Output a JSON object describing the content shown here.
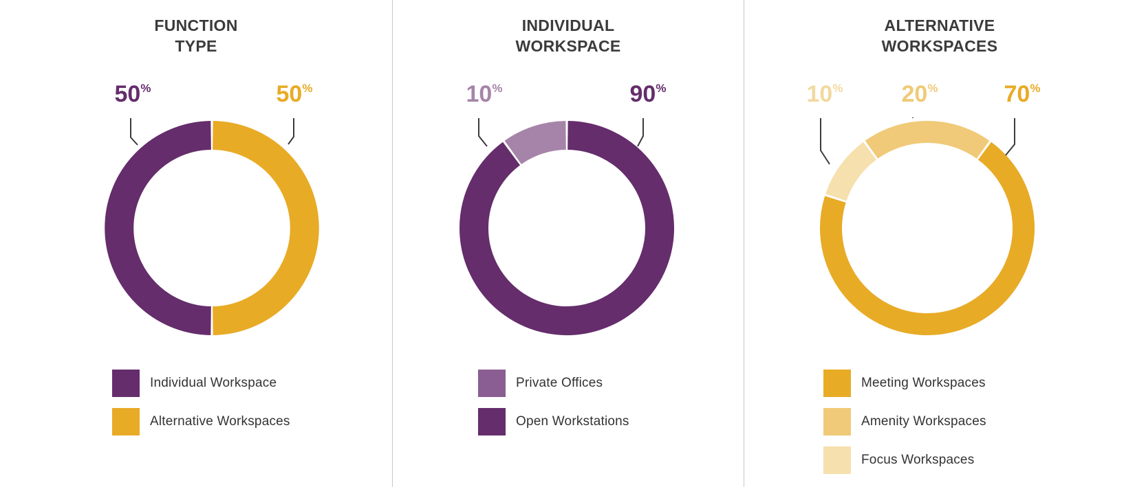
{
  "charts": [
    {
      "title_lines": [
        "FUNCTION",
        "TYPE"
      ],
      "legend": [
        {
          "label": "Individual Workspace",
          "color": "#652d6c"
        },
        {
          "label": "Alternative Workspaces",
          "color": "#e8ab26"
        }
      ]
    },
    {
      "title_lines": [
        "INDIVIDUAL",
        "WORKSPACE"
      ],
      "legend": [
        {
          "label": "Private Offices",
          "color": "#8a5e92"
        },
        {
          "label": "Open Workstations",
          "color": "#652d6c"
        }
      ]
    },
    {
      "title_lines": [
        "ALTERNATIVE",
        "WORKSPACES"
      ],
      "legend": [
        {
          "label": "Meeting Workspaces",
          "color": "#e8ab26"
        },
        {
          "label": "Amenity Workspaces",
          "color": "#f0ca78"
        },
        {
          "label": "Focus Workspaces",
          "color": "#f6e0ad"
        }
      ]
    }
  ],
  "chart_data": [
    {
      "type": "pie",
      "title": "FUNCTION TYPE",
      "slices": [
        {
          "label": "Individual Workspace",
          "value": 50,
          "display": "50",
          "unit": "%",
          "color": "#652d6c"
        },
        {
          "label": "Alternative Workspaces",
          "value": 50,
          "display": "50",
          "unit": "%",
          "color": "#e8ab26"
        }
      ]
    },
    {
      "type": "pie",
      "title": "INDIVIDUAL WORKSPACE",
      "slices": [
        {
          "label": "Private Offices",
          "value": 10,
          "display": "10",
          "unit": "%",
          "color": "#a684a9"
        },
        {
          "label": "Open Workstations",
          "value": 90,
          "display": "90",
          "unit": "%",
          "color": "#652d6c"
        }
      ]
    },
    {
      "type": "pie",
      "title": "ALTERNATIVE WORKSPACES",
      "slices": [
        {
          "label": "Focus Workspaces",
          "value": 10,
          "display": "10",
          "unit": "%",
          "color": "#f6e0ad"
        },
        {
          "label": "Amenity Workspaces",
          "value": 20,
          "display": "20",
          "unit": "%",
          "color": "#f0ca78"
        },
        {
          "label": "Meeting Workspaces",
          "value": 70,
          "display": "70",
          "unit": "%",
          "color": "#e8ab26"
        }
      ]
    }
  ]
}
